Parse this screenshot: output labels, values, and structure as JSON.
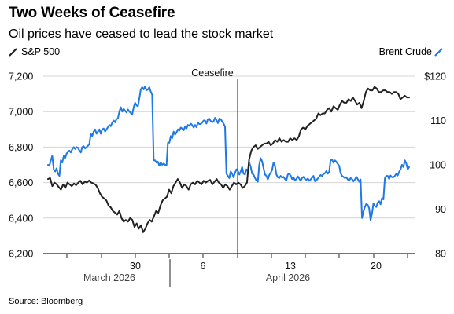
{
  "chart_data": {
    "type": "line",
    "title": "Two Weeks of Ceasefire",
    "subtitle": "Oil prices have ceased to lead the stock market",
    "source": "Source: Bloomberg",
    "annotation": "Ceasefire",
    "x_tick_labels": [
      "30",
      "6",
      "13",
      "20"
    ],
    "x_month_labels": [
      "March 2026",
      "April 2026"
    ],
    "left_axis": {
      "ylim": [
        6200,
        7200
      ],
      "ticks": [
        "6,200",
        "6,400",
        "6,600",
        "6,800",
        "7,000",
        "7,200"
      ]
    },
    "right_axis": {
      "ylim": [
        80,
        120
      ],
      "ticks": [
        "80",
        "90",
        "100",
        "110",
        "$120"
      ]
    },
    "grid": "horizontal",
    "legend_placement": "top",
    "series": [
      {
        "name": "S&P 500",
        "axis": "left",
        "color": "#222222",
        "values": [
          6620,
          6625,
          6580,
          6600,
          6590,
          6575,
          6560,
          6590,
          6570,
          6600,
          6590,
          6580,
          6595,
          6585,
          6600,
          6610,
          6590,
          6605,
          6600,
          6612,
          6600,
          6595,
          6588,
          6570,
          6540,
          6520,
          6510,
          6500,
          6470,
          6460,
          6440,
          6430,
          6420,
          6440,
          6400,
          6380,
          6390,
          6380,
          6400,
          6390,
          6350,
          6370,
          6340,
          6360,
          6320,
          6340,
          6370,
          6390,
          6380,
          6410,
          6440,
          6430,
          6470,
          6500,
          6510,
          6520,
          6560,
          6540,
          6580,
          6600,
          6620,
          6600,
          6570,
          6590,
          6580,
          6560,
          6590,
          6600,
          6590,
          6610,
          6600,
          6590,
          6610,
          6600,
          6610,
          6615,
          6590,
          6605,
          6620,
          6600,
          6590,
          6570,
          6590,
          6580,
          6560,
          6580,
          6600,
          6590,
          6600,
          6590,
          6570,
          6580,
          6600,
          6730,
          6780,
          6800,
          6810,
          6790,
          6800,
          6810,
          6820,
          6820,
          6830,
          6810,
          6820,
          6840,
          6830,
          6850,
          6830,
          6840,
          6830,
          6830,
          6850,
          6840,
          6850,
          6840,
          6860,
          6900,
          6910,
          6900,
          6920,
          6930,
          6940,
          6950,
          6960,
          6990,
          6980,
          6990,
          6990,
          7010,
          7020,
          7000,
          7030,
          7020,
          7010,
          7040,
          7060,
          7050,
          7050,
          7070,
          7060,
          7080,
          7060,
          7040,
          7050,
          7020,
          7060,
          7110,
          7130,
          7120,
          7120,
          7140,
          7130,
          7110,
          7110,
          7120,
          7120,
          7110,
          7110,
          7100,
          7110,
          7110,
          7100,
          7070,
          7080,
          7090,
          7080,
          7080
        ]
      },
      {
        "name": "Brent Crude",
        "axis": "right",
        "color": "#1e78e6",
        "values": [
          100,
          99.8,
          101,
          102,
          99,
          98.5,
          99.2,
          98,
          97.5,
          101,
          100.5,
          102,
          101.5,
          102.5,
          103,
          103.2,
          102.8,
          103.5,
          104,
          103.6,
          104,
          103.8,
          103.2,
          102.8,
          104,
          104.2,
          103.7,
          104,
          104.3,
          104.7,
          107,
          106.5,
          107.5,
          108,
          107,
          107.5,
          108,
          107,
          108,
          108.2,
          107.5,
          108,
          108.5,
          109,
          108.7,
          109.5,
          110,
          109.6,
          110.3,
          110.5,
          112,
          113,
          112,
          112.6,
          112.2,
          111.8,
          112.5,
          112,
          111.7,
          111.3,
          113,
          114,
          113.4,
          113.2,
          115,
          117,
          117.5,
          117,
          117.7,
          116.8,
          117,
          117.5,
          116.5,
          115.8,
          101,
          101,
          100.5,
          100.7,
          99.8,
          100.5,
          100,
          100.3,
          100,
          99.8,
          105,
          105,
          106.5,
          106,
          107.5,
          106.8,
          107.3,
          108,
          107.7,
          108.4,
          108.2,
          107.8,
          108.6,
          108.2,
          109,
          108.8,
          109.3,
          109,
          108.4,
          109,
          108.5,
          109.5,
          109.2,
          109.2,
          109.5,
          110,
          110,
          109.3,
          110.3,
          110.4,
          109.9,
          109.6,
          109.8,
          110.6,
          110.1,
          109.4,
          110.4,
          110.3,
          109.8,
          109.3,
          108.6,
          98,
          97.5,
          97,
          98.5,
          98,
          97.2,
          98.2,
          99,
          98.6,
          97.8,
          98.5,
          99.5,
          98,
          97.8,
          99,
          98.6,
          100.5,
          99.6,
          98,
          97.8,
          97,
          96.5,
          96.2,
          100,
          101.5,
          100.8,
          99.3,
          97.8,
          97.5,
          96.7,
          97.7,
          98.2,
          98.8,
          100.5,
          99.8,
          97.8,
          97.2,
          97,
          97.5,
          97.1,
          97.3,
          96.8,
          96.5,
          97.8,
          98,
          97.6,
          96.8,
          97.2,
          96.5,
          96.8,
          97.4,
          96.9,
          96.4,
          97,
          97.3,
          96.8,
          96.6,
          96.9,
          96.4,
          96.7,
          97.1,
          97.5,
          96.3,
          96.5,
          96.9,
          97.3,
          97.7,
          97.5,
          97.9,
          98.1,
          98.6,
          98,
          98.4,
          101,
          101.2,
          100.5,
          101,
          100.7,
          100.2,
          99.8,
          98.1,
          97.5,
          97.3,
          97,
          97.2,
          96.7,
          96.4,
          97,
          96.8,
          96.3,
          96.7,
          97.3,
          96.8,
          96.2,
          96.7,
          88,
          89.5,
          90.5,
          91.2,
          91,
          90.2,
          87.5,
          89,
          91.3,
          90.7,
          90.5,
          91.5,
          91.8,
          91.1,
          92.5,
          92.2,
          97,
          97.5,
          97.5,
          96.8,
          97.6,
          97.2,
          97.2,
          97.5,
          98,
          97.6,
          98.4,
          99,
          100,
          99.5,
          101,
          100.3,
          99,
          99.5
        ]
      }
    ]
  }
}
